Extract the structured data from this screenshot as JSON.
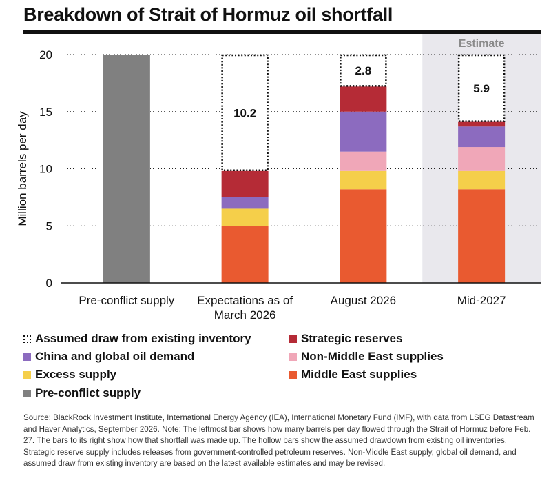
{
  "title": "Breakdown of Strait of Hormuz oil shortfall",
  "chart_data": {
    "type": "bar",
    "stacked": true,
    "title": "Breakdown of Strait of Hormuz oil shortfall",
    "ylabel": "Million barrels per day",
    "ylim": [
      0,
      20
    ],
    "yticks": [
      "0",
      "5",
      "10",
      "15",
      "20"
    ],
    "categories": [
      "Pre-conflict supply",
      "Expectations as of March 2026",
      "August 2026",
      "Mid-2027"
    ],
    "estimate_label": "Estimate",
    "estimate_category": "Mid-2027",
    "series": [
      {
        "name": "Pre-conflict supply",
        "color": "#808080",
        "values": [
          20,
          0,
          0,
          0
        ]
      },
      {
        "name": "Middle East supplies",
        "color": "#E95A30",
        "values": [
          0,
          5.0,
          8.2,
          8.2
        ]
      },
      {
        "name": "Excess supply",
        "color": "#F5CF4A",
        "values": [
          0,
          1.5,
          1.6,
          1.6
        ]
      },
      {
        "name": "Non-Middle East supplies",
        "color": "#F0A7B8",
        "values": [
          0,
          0,
          1.7,
          2.1
        ]
      },
      {
        "name": "China and global oil demand",
        "color": "#8C6BBF",
        "values": [
          0,
          1.0,
          3.5,
          1.8
        ]
      },
      {
        "name": "Strategic reserves",
        "color": "#B52B36",
        "values": [
          0,
          2.3,
          2.2,
          0.4
        ]
      },
      {
        "name": "Assumed draw from existing inventory",
        "color": "#FFFFFF",
        "hollow": true,
        "values": [
          0,
          10.2,
          2.8,
          5.9
        ]
      }
    ],
    "data_labels": [
      "",
      "10.2",
      "2.8",
      "5.9"
    ]
  },
  "legend": [
    {
      "label": "Assumed draw from existing inventory",
      "color": "#FFFFFF",
      "dotted": true
    },
    {
      "label": "Strategic reserves",
      "color": "#B52B36"
    },
    {
      "label": "China and global oil demand",
      "color": "#8C6BBF"
    },
    {
      "label": "Non-Middle East supplies",
      "color": "#F0A7B8"
    },
    {
      "label": "Excess supply",
      "color": "#F5CF4A"
    },
    {
      "label": "Middle East supplies",
      "color": "#E95A30"
    },
    {
      "label": "Pre-conflict supply",
      "color": "#808080"
    }
  ],
  "source": "Source: BlackRock Investment Institute, International Energy Agency (IEA), International Monetary Fund (IMF), with data from LSEG Datastream and Haver Analytics, September 2026. Note: The leftmost bar shows how many barrels per day flowed through the Strait of Hormuz before Feb. 27. The bars to its right show how that shortfall was made up. The hollow bars show the assumed drawdown from existing oil inventories. Strategic reserve supply includes releases from government-controlled petroleum reserves. Non-Middle East supply, global oil demand, and assumed draw from existing inventory are based on the latest available estimates and may be revised.",
  "colors": {
    "estimate_shade": "#E9E8ED",
    "estimate_text": "#8A8A8A",
    "axis": "#111111"
  }
}
